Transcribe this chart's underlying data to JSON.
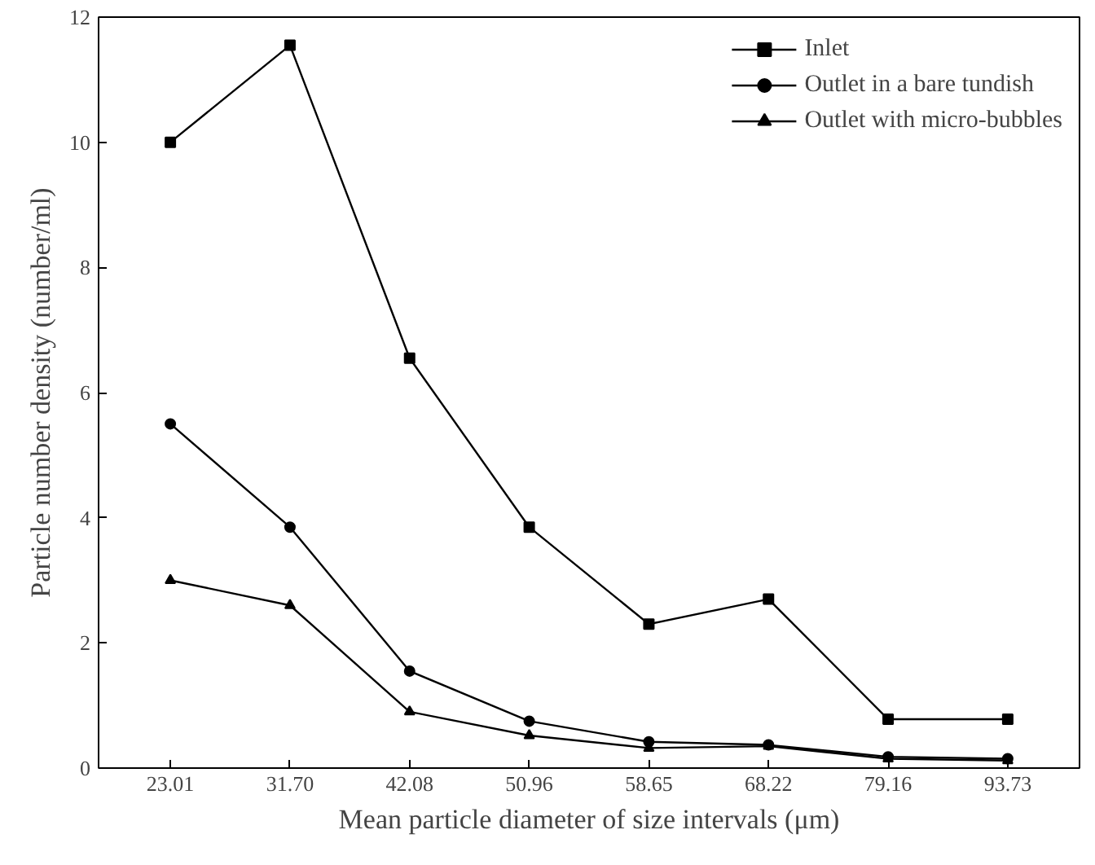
{
  "chart_data": {
    "type": "line",
    "xlabel": "Mean particle diameter of size intervals (μm)",
    "ylabel": "Particle number density (number/ml)",
    "categories": [
      "23.01",
      "31.70",
      "42.08",
      "50.96",
      "58.65",
      "68.22",
      "79.16",
      "93.73"
    ],
    "ylim": [
      0,
      12
    ],
    "yticks": [
      0,
      2,
      4,
      6,
      8,
      10,
      12
    ],
    "grid": false,
    "legend": "top right",
    "line_style": "solid",
    "series": [
      {
        "name": "Inlet",
        "color": "#000000",
        "marker": "square",
        "values": [
          10.0,
          11.55,
          6.55,
          3.85,
          2.3,
          2.7,
          0.78,
          0.78
        ]
      },
      {
        "name": "Outlet in a bare tundish",
        "color": "#000000",
        "marker": "circle",
        "values": [
          5.5,
          3.85,
          1.55,
          0.75,
          0.42,
          0.37,
          0.18,
          0.15
        ]
      },
      {
        "name": "Outlet with micro-bubbles",
        "color": "#000000",
        "marker": "triangle",
        "values": [
          3.0,
          2.6,
          0.9,
          0.52,
          0.32,
          0.35,
          0.15,
          0.12
        ]
      }
    ]
  }
}
